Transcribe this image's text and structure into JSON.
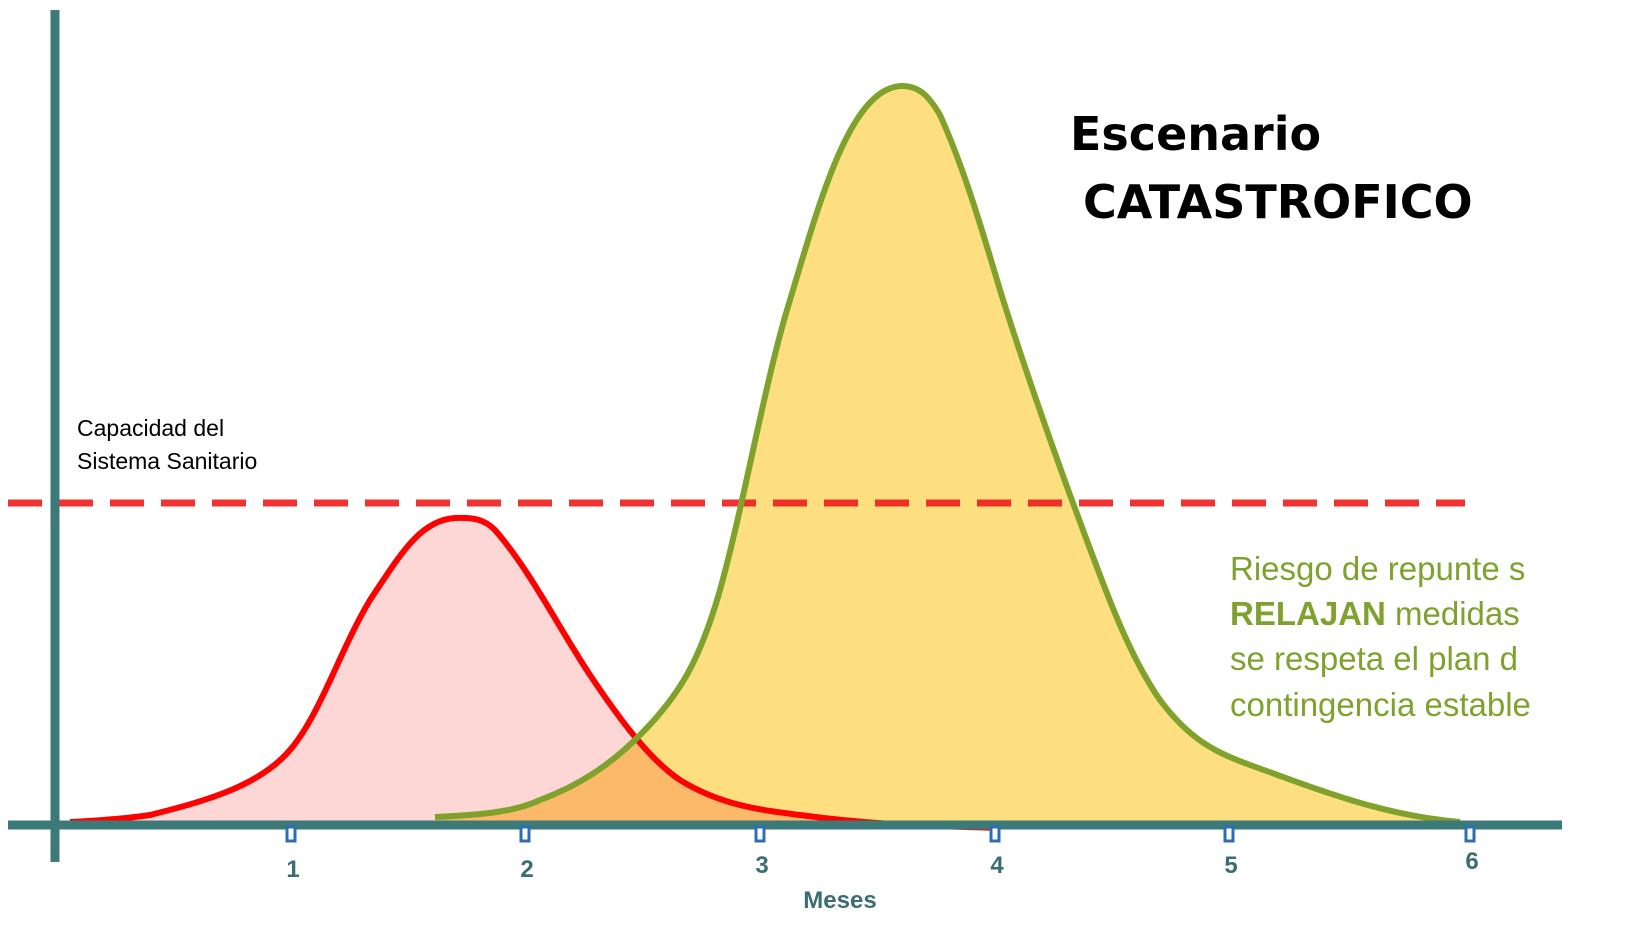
{
  "title": {
    "line1": "Escenario",
    "line2": "CATASTROFICO"
  },
  "capacity_label": {
    "line1": "Capacidad del",
    "line2": "Sistema Sanitario"
  },
  "x_axis": {
    "ticks": [
      1,
      2,
      3,
      4,
      5,
      6
    ],
    "label": "Meses"
  },
  "annotation": {
    "line1": "Riesgo de repunte s",
    "line2_bold": "RELAJAN",
    "line2_rest": " medidas",
    "line3": "se respeta el plan d",
    "line4": "contingencia estable"
  }
}
